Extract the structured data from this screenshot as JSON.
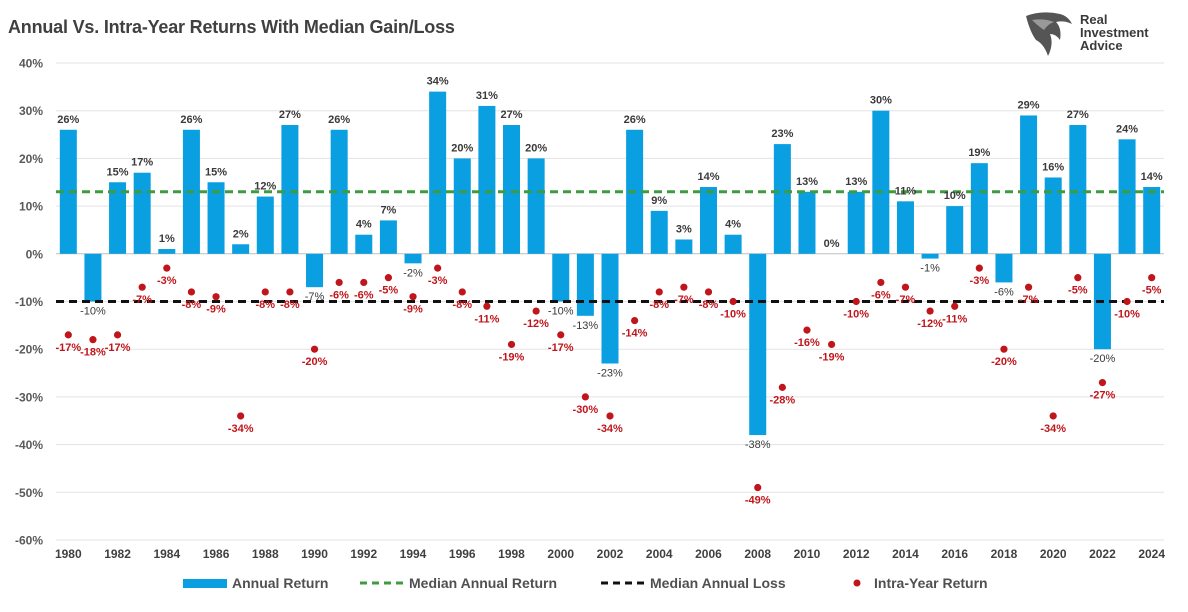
{
  "chart_data": {
    "type": "bar",
    "title": "Annual Vs. Intra-Year Returns With Median Gain/Loss",
    "x": [
      1980,
      1981,
      1982,
      1983,
      1984,
      1985,
      1986,
      1987,
      1988,
      1989,
      1990,
      1991,
      1992,
      1993,
      1994,
      1995,
      1996,
      1997,
      1998,
      1999,
      2000,
      2001,
      2002,
      2003,
      2004,
      2005,
      2006,
      2007,
      2008,
      2009,
      2010,
      2011,
      2012,
      2013,
      2014,
      2015,
      2016,
      2017,
      2018,
      2019,
      2020,
      2021,
      2022,
      2023,
      2024
    ],
    "x_tick_labels": [
      "1980",
      "1982",
      "1984",
      "1986",
      "1988",
      "1990",
      "1992",
      "1994",
      "1996",
      "1998",
      "2000",
      "2002",
      "2004",
      "2006",
      "2008",
      "2010",
      "2012",
      "2014",
      "2016",
      "2018",
      "2020",
      "2022",
      "2024"
    ],
    "y_tick_labels": [
      "40%",
      "30%",
      "20%",
      "10%",
      "0%",
      "-10%",
      "-20%",
      "-30%",
      "-40%",
      "-50%",
      "-60%"
    ],
    "ylim": [
      -60,
      40
    ],
    "grid": true,
    "legend_position": "bottom",
    "series": [
      {
        "name": "Annual Return",
        "kind": "bar",
        "color": "#0A9FE0",
        "values": [
          26,
          -10,
          15,
          17,
          1,
          26,
          15,
          2,
          12,
          27,
          -7,
          26,
          4,
          7,
          -2,
          34,
          20,
          31,
          27,
          20,
          -10,
          -13,
          -23,
          26,
          9,
          3,
          14,
          4,
          -38,
          23,
          13,
          0,
          13,
          30,
          11,
          -1,
          10,
          19,
          -6,
          29,
          16,
          27,
          -20,
          24,
          14
        ],
        "labels": [
          "26%",
          "-10%",
          "15%",
          "17%",
          "1%",
          "26%",
          "15%",
          "2%",
          "12%",
          "27%",
          "-7%",
          "26%",
          "4%",
          "7%",
          "-2%",
          "34%",
          "20%",
          "31%",
          "27%",
          "20%",
          "-10%",
          "-13%",
          "-23%",
          "26%",
          "9%",
          "3%",
          "14%",
          "4%",
          "-38%",
          "23%",
          "13%",
          "0%",
          "13%",
          "30%",
          "11%",
          "-1%",
          "10%",
          "19%",
          "-6%",
          "29%",
          "16%",
          "27%",
          "-20%",
          "24%",
          "14%"
        ]
      },
      {
        "name": "Intra-Year Return",
        "kind": "scatter",
        "color": "#C0151B",
        "values": [
          -17,
          -18,
          -17,
          -7,
          -3,
          -8,
          -9,
          -34,
          -8,
          -8,
          -20,
          -6,
          -6,
          -5,
          -9,
          -3,
          -8,
          -11,
          -19,
          -12,
          -17,
          -30,
          -34,
          -14,
          -8,
          -7,
          -8,
          -10,
          -49,
          -28,
          -16,
          -19,
          -10,
          -6,
          -7,
          -12,
          -11,
          -3,
          -20,
          -7,
          -34,
          -5,
          -27,
          -10,
          -5
        ],
        "labels": [
          "-17%",
          "-18%",
          "-17%",
          "-7%",
          "-3%",
          "-8%",
          "-9%",
          "-34%",
          "-8%",
          "-8%",
          "-20%",
          "-6%",
          "-6%",
          "-5%",
          "-9%",
          "-3%",
          "-8%",
          "-11%",
          "-19%",
          "-12%",
          "-17%",
          "-30%",
          "-34%",
          "-14%",
          "-8%",
          "-7%",
          "-8%",
          "-10%",
          "-49%",
          "-28%",
          "-16%",
          "-19%",
          "-10%",
          "-6%",
          "-7%",
          "-12%",
          "-11%",
          "-3%",
          "-20%",
          "-7%",
          "-34%",
          "-5%",
          "-27%",
          "-10%",
          "-5%"
        ]
      },
      {
        "name": "Median Annual Return",
        "kind": "line",
        "color": "#3E9B3E",
        "value": 13
      },
      {
        "name": "Median Annual Loss",
        "kind": "line",
        "color": "#111111",
        "value": -10
      }
    ]
  },
  "logo": {
    "line1": "Real",
    "line2": "Investment",
    "line3": "Advice"
  }
}
